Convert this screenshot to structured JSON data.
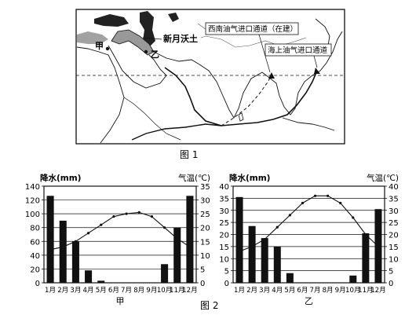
{
  "figure1": {
    "caption": "图 1",
    "labels": {
      "fertile_crescent": "新月沃土",
      "point_a": "甲",
      "point_b": "乙",
      "southwest_route": "西南油气进口通道（在建）",
      "sea_route": "海上油气进口通道"
    }
  },
  "figure2": {
    "caption": "图 2"
  },
  "chart_data": [
    {
      "type": "bar",
      "name": "甲",
      "categories": [
        "1月",
        "2月",
        "3月",
        "4月",
        "5月",
        "6月",
        "7月",
        "8月",
        "9月",
        "10月",
        "11月",
        "12月"
      ],
      "precip_label": "降水(mm)",
      "temp_label": "气温(℃)",
      "precip_ticks": [
        "0",
        "20",
        "40",
        "60",
        "80",
        "100",
        "120",
        "140"
      ],
      "temp_ticks": [
        "0",
        "5",
        "10",
        "15",
        "20",
        "25",
        "30",
        "35"
      ],
      "precip_range": [
        0,
        140
      ],
      "temp_range": [
        0,
        35
      ],
      "precipitation": [
        126,
        90,
        60,
        18,
        3,
        0,
        0,
        0,
        0,
        27,
        80,
        126
      ],
      "temperature": [
        12,
        13,
        15,
        18,
        21,
        24,
        25,
        25.5,
        24,
        20,
        16,
        13
      ]
    },
    {
      "type": "bar",
      "name": "乙",
      "categories": [
        "1月",
        "2月",
        "3月",
        "4月",
        "5月",
        "6月",
        "7月",
        "8月",
        "9月",
        "10月",
        "11月",
        "12月"
      ],
      "precip_label": "降水(mm)",
      "temp_label": "气温(℃)",
      "precip_ticks": [
        "0",
        "5",
        "10",
        "15",
        "20",
        "25",
        "30",
        "35",
        "40"
      ],
      "temp_ticks": [
        "0",
        "5",
        "10",
        "15",
        "20",
        "25",
        "30",
        "35",
        "40"
      ],
      "precip_range": [
        0,
        40
      ],
      "temp_range": [
        0,
        40
      ],
      "precipitation": [
        35.5,
        23.5,
        18.5,
        15,
        4,
        0,
        0,
        0,
        0,
        3,
        20.5,
        30.5
      ],
      "temperature": [
        13,
        15,
        18,
        23,
        28,
        33,
        36,
        36,
        33,
        27,
        20,
        15
      ]
    }
  ]
}
